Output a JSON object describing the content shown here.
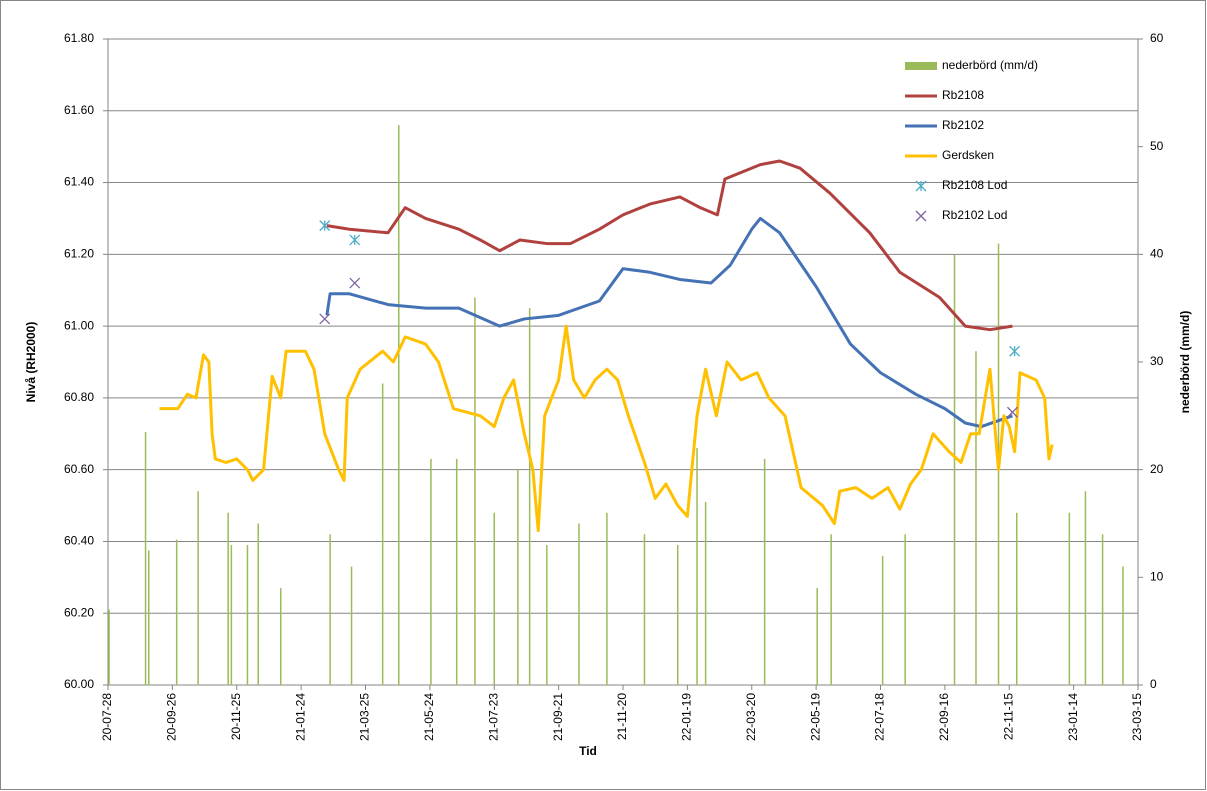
{
  "chart_data": {
    "type": "line",
    "xlabel": "Tid",
    "ylabel": "Nivå (RH2000)",
    "y2label": "nederbörd (mm/d)",
    "xlim": [
      "20-07-28",
      "23-03-15"
    ],
    "xticks": [
      "20-07-28",
      "20-09-26",
      "20-11-25",
      "21-01-24",
      "21-03-25",
      "21-05-24",
      "21-07-23",
      "21-09-21",
      "21-11-20",
      "22-01-19",
      "22-03-20",
      "22-05-19",
      "22-07-18",
      "22-09-16",
      "22-11-15",
      "23-01-14",
      "23-03-15"
    ],
    "ylim": [
      60,
      61.8
    ],
    "yticks": [
      {
        "value": 60,
        "label": "60.00"
      },
      {
        "value": 60.2,
        "label": "60.20"
      },
      {
        "value": 60.4,
        "label": "60.40"
      },
      {
        "value": 60.6,
        "label": "60.60"
      },
      {
        "value": 60.8,
        "label": "60.80"
      },
      {
        "value": 61,
        "label": "61.00"
      },
      {
        "value": 61.2,
        "label": "61.20"
      },
      {
        "value": 61.4,
        "label": "61.40"
      },
      {
        "value": 61.6,
        "label": "61.60"
      },
      {
        "value": 61.8,
        "label": "61.80"
      }
    ],
    "y2lim": [
      0,
      60
    ],
    "y2ticks": [
      0,
      10,
      20,
      30,
      40,
      50,
      60
    ],
    "grid": true,
    "legend": "upper right",
    "series": [
      {
        "name": "nederbörd (mm/d)",
        "type": "bar",
        "axis": "y2",
        "color": "#9bbb59",
        "x": [
          "20-07-29",
          "20-09-01",
          "20-09-04",
          "20-09-30",
          "20-10-20",
          "20-11-17",
          "20-11-20",
          "20-12-05",
          "20-12-15",
          "21-01-05",
          "21-02-20",
          "21-03-12",
          "21-04-10",
          "21-04-25",
          "21-05-25",
          "21-06-18",
          "21-07-05",
          "21-07-23",
          "21-08-14",
          "21-08-25",
          "21-09-10",
          "21-10-10",
          "21-11-05",
          "21-12-10",
          "22-01-10",
          "22-01-28",
          "22-02-05",
          "22-04-01",
          "22-05-20",
          "22-06-02",
          "22-07-20",
          "22-08-10",
          "22-09-25",
          "22-10-15",
          "22-11-05",
          "22-11-22",
          "23-01-10",
          "23-01-25",
          "23-02-10",
          "23-03-01"
        ],
        "values": [
          7,
          23.5,
          12.5,
          13.5,
          18,
          16,
          13,
          13,
          15,
          9,
          14,
          11,
          28,
          52,
          21,
          21,
          36,
          16,
          20,
          35,
          13,
          15,
          16,
          14,
          13,
          22,
          17,
          21,
          9,
          14,
          12,
          14,
          40,
          31,
          41,
          16,
          16,
          18,
          14,
          11
        ]
      },
      {
        "name": "Rb2108",
        "color": "#b0413e",
        "x": [
          "21-02-17",
          "21-03-10",
          "21-04-15",
          "21-05-01",
          "21-05-20",
          "21-06-20",
          "21-07-10",
          "21-07-28",
          "21-08-16",
          "21-09-10",
          "21-10-02",
          "21-10-29",
          "21-11-20",
          "21-12-15",
          "22-01-12",
          "22-01-31",
          "22-02-16",
          "22-02-23",
          "22-03-28",
          "22-04-15",
          "22-05-04",
          "22-06-01",
          "22-07-08",
          "22-08-05",
          "22-09-11",
          "22-10-05",
          "22-10-28",
          "22-11-18"
        ],
        "values": [
          61.28,
          61.27,
          61.26,
          61.33,
          61.3,
          61.27,
          61.24,
          61.21,
          61.24,
          61.23,
          61.23,
          61.27,
          61.31,
          61.34,
          61.36,
          61.33,
          61.31,
          61.41,
          61.45,
          61.46,
          61.44,
          61.37,
          61.26,
          61.15,
          61.08,
          61,
          60.99,
          61
        ]
      },
      {
        "name": "Rb2102",
        "color": "#4472b4",
        "x": [
          "21-02-17",
          "21-02-20",
          "21-03-10",
          "21-04-15",
          "21-05-20",
          "21-06-20",
          "21-07-28",
          "21-08-20",
          "21-09-21",
          "21-10-29",
          "21-11-20",
          "21-12-15",
          "22-01-12",
          "22-02-10",
          "22-02-28",
          "22-03-20",
          "22-03-28",
          "22-04-15",
          "22-05-19",
          "22-06-20",
          "22-07-18",
          "22-08-20",
          "22-09-16",
          "22-10-05",
          "22-10-20",
          "22-11-18"
        ],
        "values": [
          61.03,
          61.09,
          61.09,
          61.06,
          61.05,
          61.05,
          61,
          61.02,
          61.03,
          61.07,
          61.16,
          61.15,
          61.13,
          61.12,
          61.17,
          61.27,
          61.3,
          61.26,
          61.11,
          60.95,
          60.87,
          60.81,
          60.77,
          60.73,
          60.72,
          60.75
        ]
      },
      {
        "name": "Gerdsken",
        "color": "#ffc000",
        "x": [
          "20-09-14",
          "20-10-01",
          "20-10-10",
          "20-10-18",
          "20-10-25",
          "20-10-30",
          "20-11-02",
          "20-11-05",
          "20-11-15",
          "20-11-25",
          "20-12-05",
          "20-12-10",
          "20-12-20",
          "20-12-28",
          "21-01-05",
          "21-01-10",
          "21-01-28",
          "21-02-05",
          "21-02-15",
          "21-02-28",
          "21-03-05",
          "21-03-08",
          "21-03-20",
          "21-04-10",
          "21-04-20",
          "21-05-01",
          "21-05-20",
          "21-06-01",
          "21-06-15",
          "21-07-10",
          "21-07-23",
          "21-08-01",
          "21-08-10",
          "21-08-20",
          "21-08-28",
          "21-09-02",
          "21-09-08",
          "21-09-21",
          "21-09-28",
          "21-10-05",
          "21-10-15",
          "21-10-25",
          "21-11-05",
          "21-11-15",
          "21-11-25",
          "21-12-10",
          "21-12-20",
          "21-12-30",
          "22-01-10",
          "22-01-19",
          "22-01-28",
          "22-02-05",
          "22-02-15",
          "22-02-25",
          "22-03-10",
          "22-03-25",
          "22-04-05",
          "22-04-20",
          "22-05-05",
          "22-05-25",
          "22-06-05",
          "22-06-10",
          "22-06-25",
          "22-07-10",
          "22-07-25",
          "22-08-05",
          "22-08-15",
          "22-08-25",
          "22-09-05",
          "22-09-20",
          "22-10-01",
          "22-10-10",
          "22-10-18",
          "22-10-28",
          "22-11-05",
          "22-11-10",
          "22-11-15",
          "22-11-20",
          "22-11-25",
          "22-12-10",
          "22-12-18",
          "22-12-22",
          "22-12-25"
        ],
        "values": [
          60.77,
          60.77,
          60.81,
          60.8,
          60.92,
          60.9,
          60.7,
          60.63,
          60.62,
          60.63,
          60.6,
          60.57,
          60.6,
          60.86,
          60.8,
          60.93,
          60.93,
          60.88,
          60.7,
          60.6,
          60.57,
          60.8,
          60.88,
          60.93,
          60.9,
          60.97,
          60.95,
          60.9,
          60.77,
          60.75,
          60.72,
          60.8,
          60.85,
          60.7,
          60.6,
          60.43,
          60.75,
          60.85,
          61,
          60.85,
          60.8,
          60.85,
          60.88,
          60.85,
          60.75,
          60.62,
          60.52,
          60.56,
          60.5,
          60.47,
          60.75,
          60.88,
          60.75,
          60.9,
          60.85,
          60.87,
          60.8,
          60.75,
          60.55,
          60.5,
          60.45,
          60.54,
          60.55,
          60.52,
          60.55,
          60.49,
          60.56,
          60.6,
          60.7,
          60.65,
          60.62,
          60.7,
          60.7,
          60.88,
          60.6,
          60.75,
          60.72,
          60.65,
          60.87,
          60.85,
          60.8,
          60.63,
          60.67
        ]
      },
      {
        "name": "Rb2108 Lod",
        "type": "scatter",
        "marker": "asterisk",
        "color": "#4bacc6",
        "x": [
          "21-02-15",
          "21-03-15",
          "22-11-20"
        ],
        "values": [
          61.28,
          61.24,
          60.93
        ]
      },
      {
        "name": "Rb2102 Lod",
        "type": "scatter",
        "marker": "x",
        "color": "#8064a2",
        "x": [
          "21-02-15",
          "21-03-15",
          "22-11-18"
        ],
        "values": [
          61.02,
          61.12,
          60.76
        ]
      }
    ]
  }
}
